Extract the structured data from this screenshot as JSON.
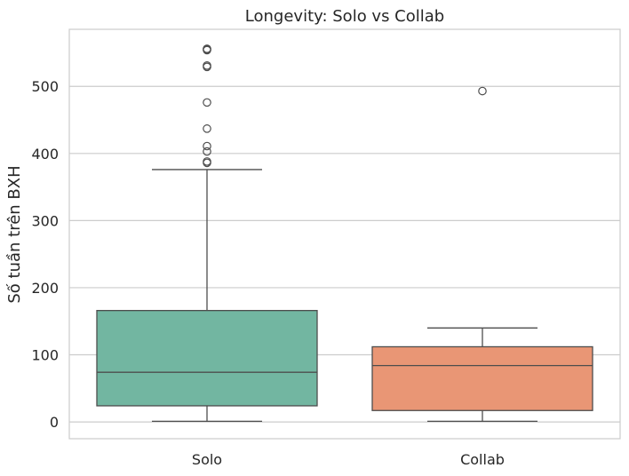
{
  "chart_data": {
    "type": "boxplot",
    "title": "Longevity: Solo vs Collab",
    "xlabel": "",
    "ylabel": "Số tuần trên BXH",
    "ylim": [
      -25,
      585
    ],
    "yticks": [
      0,
      100,
      200,
      300,
      400,
      500
    ],
    "grid": "horizontal",
    "categories": [
      "Solo",
      "Collab"
    ],
    "boxes": [
      {
        "category": "Solo",
        "color": "#72b6a1",
        "whisker_low": 1,
        "q1": 24,
        "median": 74,
        "q3": 166,
        "whisker_high": 376,
        "outliers": [
          386,
          388,
          403,
          411,
          437,
          476,
          529,
          531,
          554,
          555,
          556
        ]
      },
      {
        "category": "Collab",
        "color": "#e99675",
        "whisker_low": 1,
        "q1": 17,
        "median": 84,
        "q3": 112,
        "whisker_high": 140,
        "outliers": [
          493
        ]
      }
    ]
  }
}
